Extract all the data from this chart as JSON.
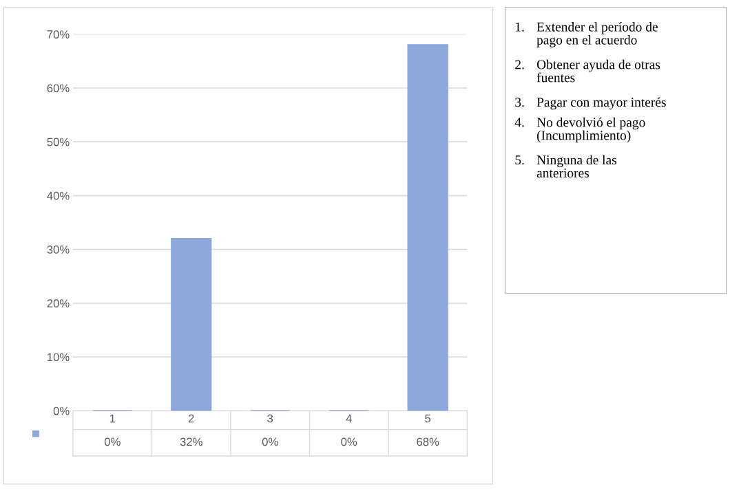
{
  "chart_data": {
    "type": "bar",
    "categories": [
      "1",
      "2",
      "3",
      "4",
      "5"
    ],
    "values": [
      0,
      32,
      0,
      0,
      68
    ],
    "value_labels": [
      "0%",
      "32%",
      "0%",
      "0%",
      "68%"
    ],
    "color": "#8fa8dc",
    "ylim": [
      0,
      70
    ],
    "yticks": [
      {
        "value": 0,
        "label": "0%"
      },
      {
        "value": 10,
        "label": "10%"
      },
      {
        "value": 20,
        "label": "20%"
      },
      {
        "value": 30,
        "label": "30%"
      },
      {
        "value": 40,
        "label": "40%"
      },
      {
        "value": 50,
        "label": "50%"
      },
      {
        "value": 60,
        "label": "60%"
      },
      {
        "value": 70,
        "label": "70%"
      }
    ],
    "grid": "y",
    "annotations": [
      "1.\tExtender el período de\npago en el acuerdo",
      "2.\tObtener ayuda de otras\nfuentes",
      "3.\tPagar con mayor interés",
      "4.\tNo devolvió el pago\n(Incumplimiento)",
      "5.\tNinguna de las\nanteriores"
    ]
  }
}
